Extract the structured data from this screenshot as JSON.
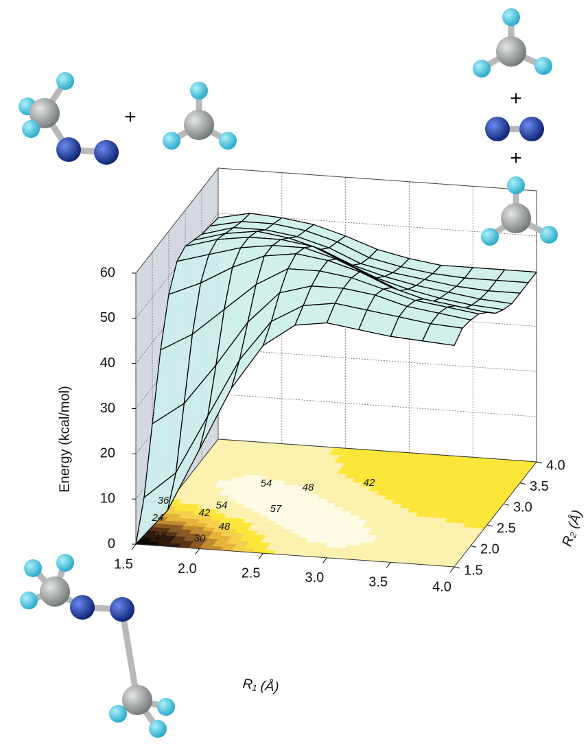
{
  "chart_data": {
    "type": "surface",
    "z_label": "Energy (kcal/mol)",
    "x_label": "R₁ (Å)",
    "y_label": "R₂ (Å)",
    "x": [
      1.5,
      1.75,
      2.0,
      2.25,
      2.5,
      2.75,
      3.0,
      3.25,
      3.5,
      3.75,
      4.0
    ],
    "y": [
      1.5,
      1.75,
      2.0,
      2.25,
      2.5,
      2.75,
      3.0,
      3.25,
      3.5,
      3.75,
      4.0
    ],
    "z": [
      [
        0,
        8,
        22,
        36,
        46,
        51,
        52,
        51,
        50,
        49.5,
        49
      ],
      [
        8,
        14,
        27,
        40,
        49,
        53,
        54,
        53,
        52,
        51,
        50.5
      ],
      [
        22,
        27,
        36,
        46,
        53,
        55,
        55,
        54,
        52,
        51,
        50
      ],
      [
        36,
        40,
        46,
        52,
        56,
        56,
        55,
        53,
        51,
        50,
        49
      ],
      [
        46,
        49,
        53,
        56,
        57,
        56,
        54,
        51,
        49,
        48,
        47
      ],
      [
        51,
        53,
        55,
        56,
        56,
        54,
        51,
        48,
        46,
        45,
        44.5
      ],
      [
        52,
        54,
        55,
        55,
        54,
        51,
        48,
        46,
        44.5,
        43.5,
        43
      ],
      [
        51,
        53,
        54,
        53,
        51,
        48,
        46,
        44.5,
        43.5,
        42.5,
        42
      ],
      [
        50,
        52,
        52,
        51,
        49,
        46,
        44.5,
        43.5,
        42.5,
        42,
        42
      ],
      [
        49.5,
        51,
        51,
        50,
        48,
        45,
        43.5,
        42.5,
        42,
        42,
        42
      ],
      [
        49,
        50.5,
        50,
        49,
        47,
        44.5,
        43,
        42,
        42,
        42,
        42
      ]
    ],
    "xlim": [
      1.5,
      4.0
    ],
    "ylim": [
      1.5,
      4.0
    ],
    "zlim": [
      0,
      60
    ],
    "xticks": [
      1.5,
      {
        "value": 2,
        "label": "2.0"
      },
      2.5,
      {
        "value": 3,
        "label": "3.0"
      },
      3.5,
      {
        "value": 4,
        "label": "4.0"
      }
    ],
    "yticks": [
      1.5,
      {
        "value": 2,
        "label": "2.0"
      },
      2.5,
      {
        "value": 3,
        "label": "3.0"
      },
      3.5,
      {
        "value": 4,
        "label": "4.0"
      }
    ],
    "zticks": [
      0,
      10,
      20,
      30,
      40,
      50,
      60
    ],
    "grid": true,
    "surface_color": "#cdeee9",
    "contour_labels": [
      36,
      24,
      18,
      30,
      42,
      54,
      48,
      54,
      57,
      48,
      42
    ],
    "annotations": [
      "+",
      "+",
      "+"
    ]
  }
}
